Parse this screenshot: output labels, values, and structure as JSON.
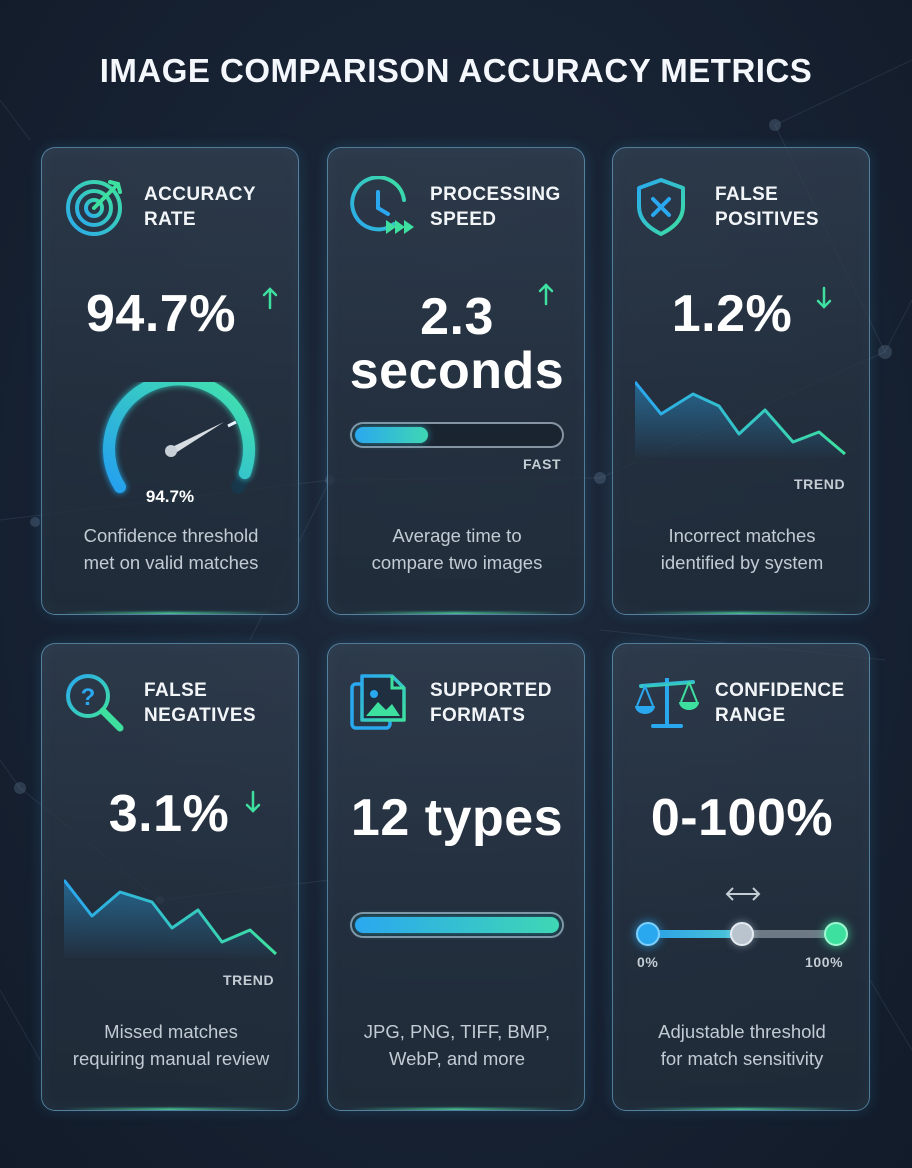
{
  "title": "IMAGE COMPARISON ACCURACY METRICS",
  "colors": {
    "accent_green": "#3ee0a0",
    "accent_blue": "#2aa8ef",
    "background": "#172233"
  },
  "cards": [
    {
      "id": "accuracy-rate",
      "label_line1": "ACCURACY",
      "label_line2": "RATE",
      "icon": "target-icon",
      "value": "94.7%",
      "trend": "up",
      "gauge_value_label": "94.7%",
      "gauge_fraction": 0.947,
      "desc_line1": "Confidence threshold",
      "desc_line2": "met on valid matches"
    },
    {
      "id": "processing-speed",
      "label_line1": "PROCESSING",
      "label_line2": "SPEED",
      "icon": "clock-fast-forward-icon",
      "value_line1": "2.3",
      "value_line2": "seconds",
      "trend": "up",
      "bar_fraction": 0.36,
      "bar_label": "FAST",
      "desc_line1": "Average time to",
      "desc_line2": "compare two images"
    },
    {
      "id": "false-positives",
      "label_line1": "FALSE",
      "label_line2": "POSITIVES",
      "icon": "shield-x-icon",
      "value": "1.2%",
      "trend": "down",
      "trend_label": "TREND",
      "desc_line1": "Incorrect matches",
      "desc_line2": "identified by system"
    },
    {
      "id": "false-negatives",
      "label_line1": "FALSE",
      "label_line2": "NEGATIVES",
      "icon": "magnifier-question-icon",
      "value": "3.1%",
      "trend": "down",
      "trend_label": "TREND",
      "desc_line1": "Missed matches",
      "desc_line2": "requiring manual review"
    },
    {
      "id": "supported-formats",
      "label_line1": "SUPPORTED",
      "label_line2": "FORMATS",
      "icon": "image-files-icon",
      "value": "12 types",
      "bar_fraction": 1.0,
      "desc_line1": "JPG, PNG, TIFF, BMP,",
      "desc_line2": "WebP, and more"
    },
    {
      "id": "confidence-range",
      "label_line1": "CONFIDENCE",
      "label_line2": "RANGE",
      "icon": "balance-scale-icon",
      "value": "0-100%",
      "range_min_label": "0%",
      "range_max_label": "100%",
      "slider_fraction": 0.5,
      "desc_line1": "Adjustable threshold",
      "desc_line2": "for match sensitivity"
    }
  ]
}
